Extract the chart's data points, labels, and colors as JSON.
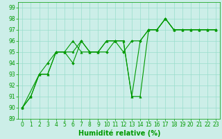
{
  "xlabel": "Humidité relative (%)",
  "bg_color": "#cceee8",
  "grid_color": "#99ddcc",
  "line_color": "#009900",
  "xlim": [
    -0.5,
    23.5
  ],
  "ylim": [
    89,
    99.5
  ],
  "yticks": [
    89,
    90,
    91,
    92,
    93,
    94,
    95,
    96,
    97,
    98,
    99
  ],
  "xticks": [
    0,
    1,
    2,
    3,
    4,
    5,
    6,
    7,
    8,
    9,
    10,
    11,
    12,
    13,
    14,
    15,
    16,
    17,
    18,
    19,
    20,
    21,
    22,
    23
  ],
  "line1_x": [
    0,
    1,
    2,
    3,
    4,
    5,
    6,
    7,
    8,
    9,
    10,
    11,
    12,
    13,
    14,
    15,
    16,
    17,
    18,
    19,
    20,
    21,
    22,
    23
  ],
  "line1_y": [
    90,
    91,
    93,
    93,
    95,
    95,
    96,
    95,
    95,
    95,
    96,
    96,
    96,
    91,
    91,
    97,
    97,
    98,
    97,
    97,
    97,
    97,
    97,
    97
  ],
  "line2_x": [
    0,
    1,
    2,
    3,
    4,
    5,
    6,
    7,
    8,
    9,
    10,
    11,
    12,
    13,
    14,
    15,
    16,
    17,
    18,
    19,
    20,
    21,
    22,
    23
  ],
  "line2_y": [
    90,
    91,
    93,
    94,
    95,
    95,
    94,
    96,
    95,
    95,
    95,
    96,
    95,
    96,
    96,
    97,
    97,
    98,
    97,
    97,
    97,
    97,
    97,
    97
  ],
  "line3_x": [
    0,
    2,
    3,
    4,
    5,
    6,
    7,
    8,
    9,
    10,
    11,
    12,
    13,
    14,
    15,
    16,
    17,
    18,
    19,
    20,
    21,
    22,
    23
  ],
  "line3_y": [
    90,
    93,
    93,
    95,
    95,
    95,
    96,
    95,
    95,
    96,
    96,
    96,
    91,
    96,
    97,
    97,
    98,
    97,
    97,
    97,
    97,
    97,
    97
  ],
  "marker_size": 2.5,
  "line_width": 0.8,
  "tick_fontsize": 5.5,
  "xlabel_fontsize": 7
}
